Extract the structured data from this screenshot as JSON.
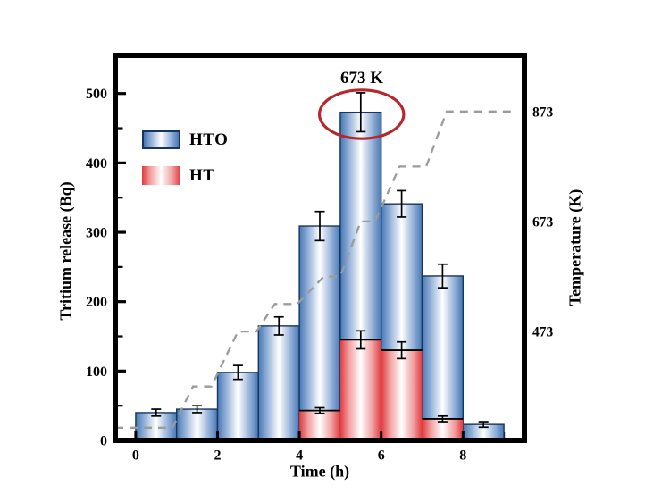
{
  "chart_data": {
    "type": "bar",
    "title": "",
    "xlabel": "Time (h)",
    "ylabel_left": "Tritium release (Bq)",
    "ylabel_right": "Temperature (K)",
    "xlim": [
      -0.5,
      9.5
    ],
    "ylim_left": [
      0,
      555
    ],
    "ylim_right": [
      275,
      975
    ],
    "x_major_ticks": [
      0,
      2,
      4,
      6,
      8
    ],
    "x_minor_ticks": [
      1,
      3,
      5,
      7,
      9
    ],
    "y_major_ticks": [
      0,
      100,
      200,
      300,
      400,
      500
    ],
    "y_minor_ticks": [
      50,
      150,
      250,
      350,
      450
    ],
    "y_right_ticks": [
      473,
      673,
      873
    ],
    "grid": false,
    "legend_position": "upper-left-inside",
    "error_bar_color": "#000000",
    "axis_color": "#000000",
    "bar_series": [
      {
        "name": "HTO",
        "bin_start": 0,
        "bin_width": 1,
        "values": [
          40,
          45,
          98,
          165,
          309,
          473,
          341,
          237,
          23
        ],
        "errors": [
          5,
          5,
          10,
          13,
          21,
          28,
          19,
          17,
          4
        ],
        "edge_color": "#17365d",
        "fill_edge": "#4678b5",
        "fill_mid": "#8fadd6",
        "fill_center": "#ffffff"
      },
      {
        "name": "HT",
        "bin_start": 4,
        "bin_width": 1,
        "values": [
          43,
          145,
          130,
          31
        ],
        "errors": [
          4,
          13,
          12,
          4
        ],
        "edge_color": "#000000",
        "fill_edge": "#e03a3d",
        "fill_mid": "#f0999b",
        "fill_center": "#ffffff"
      }
    ],
    "temperature_series": {
      "name": "Temperature program",
      "style": "dashed",
      "color": "#9b9b9b",
      "points": [
        [
          -0.5,
          298
        ],
        [
          0.9,
          298
        ],
        [
          1.4,
          373
        ],
        [
          1.85,
          373
        ],
        [
          2.5,
          473
        ],
        [
          2.95,
          473
        ],
        [
          3.4,
          523
        ],
        [
          3.95,
          523
        ],
        [
          4.6,
          573
        ],
        [
          5.0,
          573
        ],
        [
          5.5,
          673
        ],
        [
          5.85,
          673
        ],
        [
          6.45,
          773
        ],
        [
          7.1,
          773
        ],
        [
          7.6,
          873
        ],
        [
          9.3,
          873
        ]
      ]
    },
    "annotation": {
      "text": "673 K",
      "ellipse": {
        "center_time": 5.52,
        "center_bq": 470,
        "rx_hours": 1.03,
        "ry_bq": 35,
        "color": "#b4282e"
      }
    }
  }
}
